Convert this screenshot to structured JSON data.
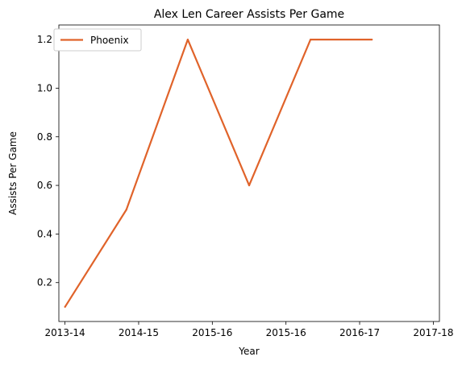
{
  "chart_data": {
    "type": "line",
    "title": "Alex Len Career Assists Per Game",
    "xlabel": "Year",
    "ylabel": "Assists Per Game",
    "categories": [
      "2013-14",
      "2014-15",
      "2015-16",
      "2015-16",
      "2016-17",
      "2017-18"
    ],
    "x_ticks": [
      0,
      1.2,
      2.4,
      3.6,
      4.8,
      6.0
    ],
    "series": [
      {
        "name": "Phoenix",
        "color": "#e0632a",
        "x": [
          0,
          1,
          2,
          3,
          4,
          5
        ],
        "values": [
          0.1,
          0.5,
          1.2,
          0.6,
          1.2,
          1.2
        ]
      }
    ],
    "ylim": [
      0.04,
      1.26
    ],
    "yticks": [
      0.2,
      0.4,
      0.6,
      0.8,
      1.0,
      1.2
    ],
    "ytick_labels": [
      "0.2",
      "0.4",
      "0.6",
      "0.8",
      "1.0",
      "1.2"
    ],
    "grid": false,
    "legend_position": "top-left"
  }
}
